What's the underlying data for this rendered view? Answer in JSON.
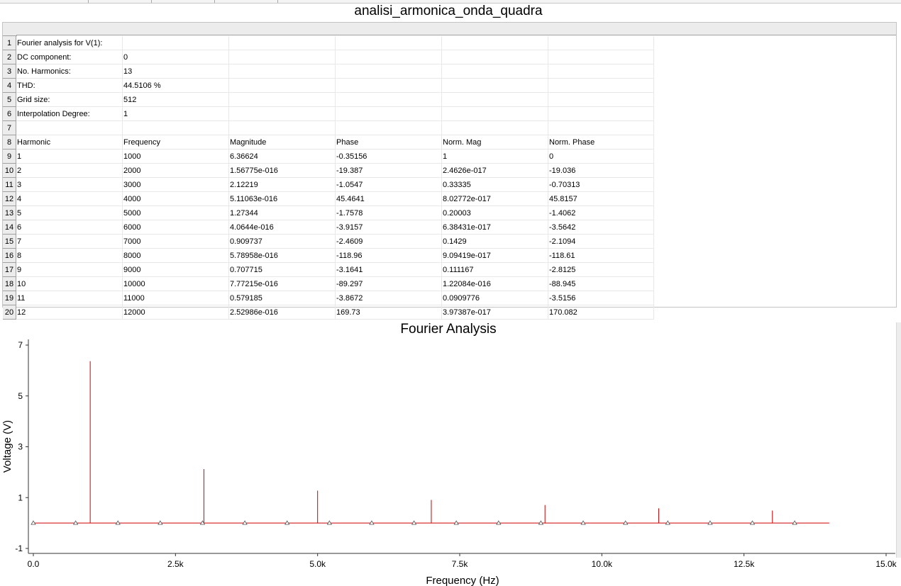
{
  "window": {
    "title": "analisi_armonica_onda_quadra"
  },
  "table": {
    "row_numbers": [
      "1",
      "2",
      "3",
      "4",
      "5",
      "6",
      "7",
      "8",
      "9",
      "10",
      "11",
      "12",
      "13",
      "14",
      "15",
      "16",
      "17",
      "18",
      "19",
      "20"
    ],
    "rows": [
      [
        "Fourier analysis for V(1):",
        "",
        "",
        "",
        "",
        ""
      ],
      [
        "DC component:",
        "0",
        "",
        "",
        "",
        ""
      ],
      [
        "No. Harmonics:",
        "13",
        "",
        "",
        "",
        ""
      ],
      [
        "THD:",
        "44.5106 %",
        "",
        "",
        "",
        ""
      ],
      [
        "Grid size:",
        "512",
        "",
        "",
        "",
        ""
      ],
      [
        "Interpolation Degree:",
        "1",
        "",
        "",
        "",
        ""
      ],
      [
        "",
        "",
        "",
        "",
        "",
        ""
      ],
      [
        "Harmonic",
        "Frequency",
        "Magnitude",
        "Phase",
        "Norm. Mag",
        "Norm. Phase"
      ],
      [
        "1",
        "1000",
        "6.36624",
        "-0.35156",
        "1",
        "0"
      ],
      [
        "2",
        "2000",
        "1.56775e-016",
        "-19.387",
        "2.4626e-017",
        "-19.036"
      ],
      [
        "3",
        "3000",
        "2.12219",
        "-1.0547",
        "0.33335",
        "-0.70313"
      ],
      [
        "4",
        "4000",
        "5.11063e-016",
        "45.4641",
        "8.02772e-017",
        "45.8157"
      ],
      [
        "5",
        "5000",
        "1.27344",
        "-1.7578",
        "0.20003",
        "-1.4062"
      ],
      [
        "6",
        "6000",
        "4.0644e-016",
        "-3.9157",
        "6.38431e-017",
        "-3.5642"
      ],
      [
        "7",
        "7000",
        "0.909737",
        "-2.4609",
        "0.1429",
        "-2.1094"
      ],
      [
        "8",
        "8000",
        "5.78958e-016",
        "-118.96",
        "9.09419e-017",
        "-118.61"
      ],
      [
        "9",
        "9000",
        "0.707715",
        "-3.1641",
        "0.111167",
        "-2.8125"
      ],
      [
        "10",
        "10000",
        "7.77215e-016",
        "-89.297",
        "1.22084e-016",
        "-88.945"
      ],
      [
        "11",
        "11000",
        "0.579185",
        "-3.8672",
        "0.0909776",
        "-3.5156"
      ],
      [
        "12",
        "12000",
        "2.52986e-016",
        "169.73",
        "3.97387e-017",
        "170.082"
      ]
    ]
  },
  "chart_data": {
    "type": "bar",
    "title": "Fourier Analysis",
    "xlabel": "Frequency (Hz)",
    "ylabel": "Voltage (V)",
    "xlim": [
      0,
      15000
    ],
    "ylim": [
      -1,
      7
    ],
    "x_ticks": [
      0,
      2500,
      5000,
      7500,
      10000,
      12500,
      15000
    ],
    "x_tick_labels": [
      "0.0",
      "2.5k",
      "5.0k",
      "7.5k",
      "10.0k",
      "12.5k",
      "15.0k"
    ],
    "y_ticks": [
      7,
      5,
      3,
      1,
      -1
    ],
    "y_tick_labels": [
      "7",
      "5",
      "3",
      "1",
      "-1"
    ],
    "grid": false,
    "series": [
      {
        "color": "#cc0000",
        "x": [
          1000,
          2000,
          3000,
          4000,
          5000,
          6000,
          7000,
          8000,
          9000,
          10000,
          11000,
          12000,
          13000
        ],
        "values": [
          6.36624,
          0,
          2.12219,
          0,
          1.27344,
          0,
          0.909737,
          0,
          0.707715,
          0,
          0.579185,
          0,
          0.49
        ]
      }
    ],
    "baseline": {
      "x_start": 0,
      "x_end": 14000,
      "y": 0
    },
    "sample_markers": [
      0,
      744,
      1488,
      2232,
      2976,
      3720,
      4464,
      5208,
      5952,
      6696,
      7440,
      8184,
      8928,
      9672,
      10416,
      11160,
      11904,
      12648,
      13392
    ],
    "marker_symbol": "triangle"
  }
}
